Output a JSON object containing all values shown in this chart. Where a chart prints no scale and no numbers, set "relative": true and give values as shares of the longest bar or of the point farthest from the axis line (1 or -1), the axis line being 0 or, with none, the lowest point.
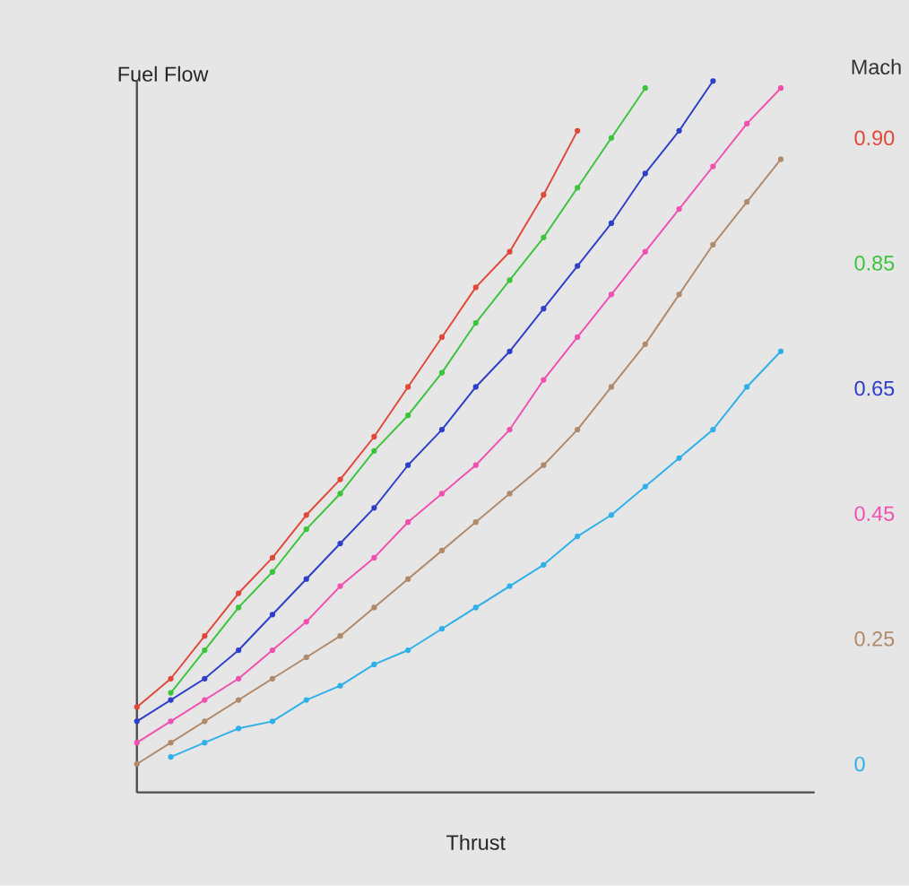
{
  "chart_data": {
    "type": "line",
    "relative": true,
    "xlabel": "Thrust",
    "ylabel": "Fuel Flow",
    "legend_title": "Mach",
    "marker": "circle",
    "line_style": "solid",
    "categories": [
      null,
      null,
      null,
      null,
      null,
      null,
      null,
      null,
      null,
      null,
      null,
      null,
      null,
      null,
      null,
      null,
      null,
      null,
      null,
      null
    ],
    "series": [
      {
        "name": "0.90",
        "color": "#e0483a",
        "values": [
          0.12,
          0.16,
          0.22,
          0.28,
          0.33,
          0.39,
          0.44,
          0.5,
          0.57,
          0.64,
          0.71,
          0.76,
          0.84,
          0.93,
          null,
          null,
          null,
          null,
          null,
          null
        ]
      },
      {
        "name": "0.85",
        "color": "#3cc43c",
        "values": [
          null,
          0.14,
          0.2,
          0.26,
          0.31,
          0.37,
          0.42,
          0.48,
          0.53,
          0.59,
          0.66,
          0.72,
          0.78,
          0.85,
          0.92,
          0.99,
          null,
          null,
          null,
          null
        ]
      },
      {
        "name": "0.65",
        "color": "#2e3fc8",
        "values": [
          0.1,
          0.13,
          0.16,
          0.2,
          0.25,
          0.3,
          0.35,
          0.4,
          0.46,
          0.51,
          0.57,
          0.62,
          0.68,
          0.74,
          0.8,
          0.87,
          0.93,
          1.0,
          null,
          null
        ]
      },
      {
        "name": "0.45",
        "color": "#f050b0",
        "values": [
          0.07,
          0.1,
          0.13,
          0.16,
          0.2,
          0.24,
          0.29,
          0.33,
          0.38,
          0.42,
          0.46,
          0.51,
          0.58,
          0.64,
          0.7,
          0.76,
          0.82,
          0.88,
          0.94,
          0.99
        ]
      },
      {
        "name": "0.25",
        "color": "#b08a6a",
        "values": [
          0.04,
          0.07,
          0.1,
          0.13,
          0.16,
          0.19,
          0.22,
          0.26,
          0.3,
          0.34,
          0.38,
          0.42,
          0.46,
          0.51,
          0.57,
          0.63,
          0.7,
          0.77,
          0.83,
          0.89
        ]
      },
      {
        "name": "0",
        "color": "#30b0e8",
        "values": [
          null,
          0.05,
          0.07,
          0.09,
          0.1,
          0.13,
          0.15,
          0.18,
          0.2,
          0.23,
          0.26,
          0.29,
          0.32,
          0.36,
          0.39,
          0.43,
          0.47,
          0.51,
          0.57,
          0.62
        ]
      }
    ]
  }
}
